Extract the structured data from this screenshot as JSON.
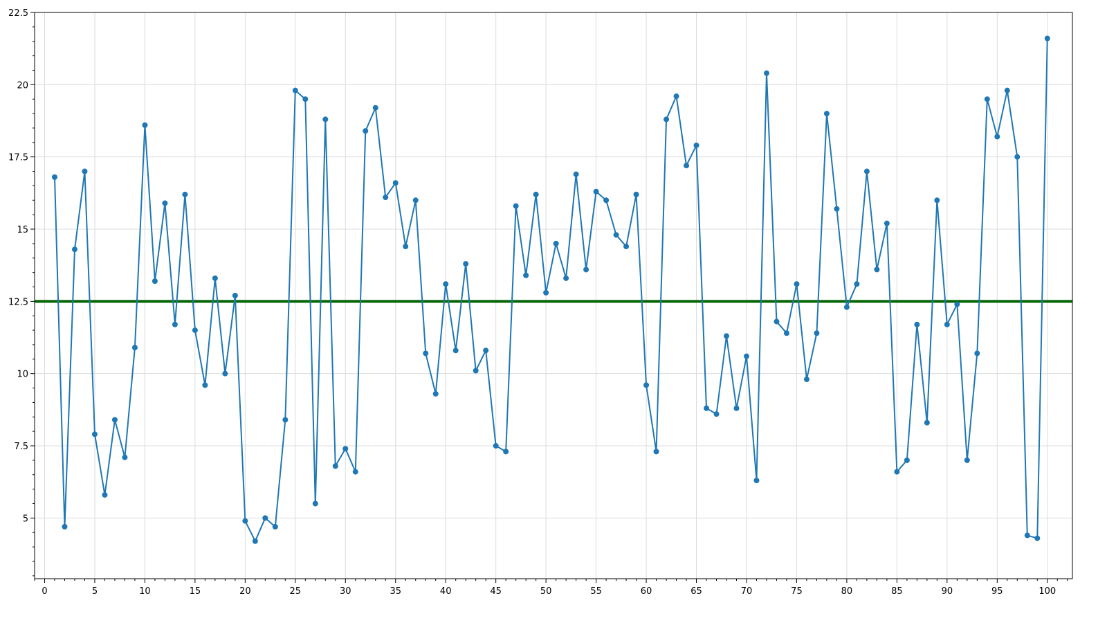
{
  "chart_data": {
    "type": "line",
    "title": "",
    "xlabel": "",
    "ylabel": "",
    "xlim": [
      -1,
      102.5
    ],
    "ylim": [
      2.9,
      22.5
    ],
    "grid": true,
    "x_ticks": [
      0,
      5,
      10,
      15,
      20,
      25,
      30,
      35,
      40,
      45,
      50,
      55,
      60,
      65,
      70,
      75,
      80,
      85,
      90,
      95,
      100
    ],
    "y_ticks": [
      5,
      7.5,
      10,
      12.5,
      15,
      17.5,
      20,
      22.5
    ],
    "x_tick_labels": [
      "0",
      "5",
      "10",
      "15",
      "20",
      "25",
      "30",
      "35",
      "40",
      "45",
      "50",
      "55",
      "60",
      "65",
      "70",
      "75",
      "80",
      "85",
      "90",
      "95",
      "100"
    ],
    "y_tick_labels": [
      "5",
      "7.5",
      "10",
      "12.5",
      "15",
      "17.5",
      "20",
      "22.5"
    ],
    "reference_line": {
      "y": 12.5,
      "color": "#006400"
    },
    "series": [
      {
        "color": "#1f77b4",
        "x": [
          1,
          2,
          3,
          4,
          5,
          6,
          7,
          8,
          9,
          10,
          11,
          12,
          13,
          14,
          15,
          16,
          17,
          18,
          19,
          20,
          21,
          22,
          23,
          24,
          25,
          26,
          27,
          28,
          29,
          30,
          31,
          32,
          33,
          34,
          35,
          36,
          37,
          38,
          39,
          40,
          41,
          42,
          43,
          44,
          45,
          46,
          47,
          48,
          49,
          50,
          51,
          52,
          53,
          54,
          55,
          56,
          57,
          58,
          59,
          60,
          61,
          62,
          63,
          64,
          65,
          66,
          67,
          68,
          69,
          70,
          71,
          72,
          73,
          74,
          75,
          76,
          77,
          78,
          79,
          80,
          81,
          82,
          83,
          84,
          85,
          86,
          87,
          88,
          89,
          90,
          91,
          92,
          93,
          94,
          95,
          96,
          97,
          98,
          99,
          100
        ],
        "y": [
          16.8,
          4.7,
          14.3,
          17.0,
          7.9,
          5.8,
          8.4,
          7.1,
          10.9,
          18.6,
          13.2,
          15.9,
          11.7,
          16.2,
          11.5,
          9.6,
          13.3,
          10.0,
          12.7,
          4.9,
          4.2,
          5.0,
          4.7,
          8.4,
          19.8,
          19.5,
          5.5,
          18.8,
          6.8,
          7.4,
          6.6,
          18.4,
          19.2,
          16.1,
          16.6,
          14.4,
          16.0,
          10.7,
          9.3,
          13.1,
          10.8,
          13.8,
          10.1,
          10.8,
          7.5,
          7.3,
          15.8,
          13.4,
          16.2,
          12.8,
          14.5,
          13.3,
          16.9,
          13.6,
          16.3,
          16.0,
          14.8,
          14.4,
          16.2,
          9.6,
          7.3,
          18.8,
          19.6,
          17.2,
          17.9,
          8.8,
          8.6,
          11.3,
          8.8,
          10.6,
          6.3,
          20.4,
          11.8,
          11.4,
          13.1,
          9.8,
          11.4,
          19.0,
          15.7,
          12.3,
          13.1,
          17.0,
          13.6,
          15.2,
          6.6,
          7.0,
          11.7,
          8.3,
          16.0,
          11.7,
          12.4,
          7.0,
          10.7,
          19.5,
          18.2,
          19.8,
          17.5,
          4.4,
          4.3,
          21.6
        ]
      }
    ]
  }
}
